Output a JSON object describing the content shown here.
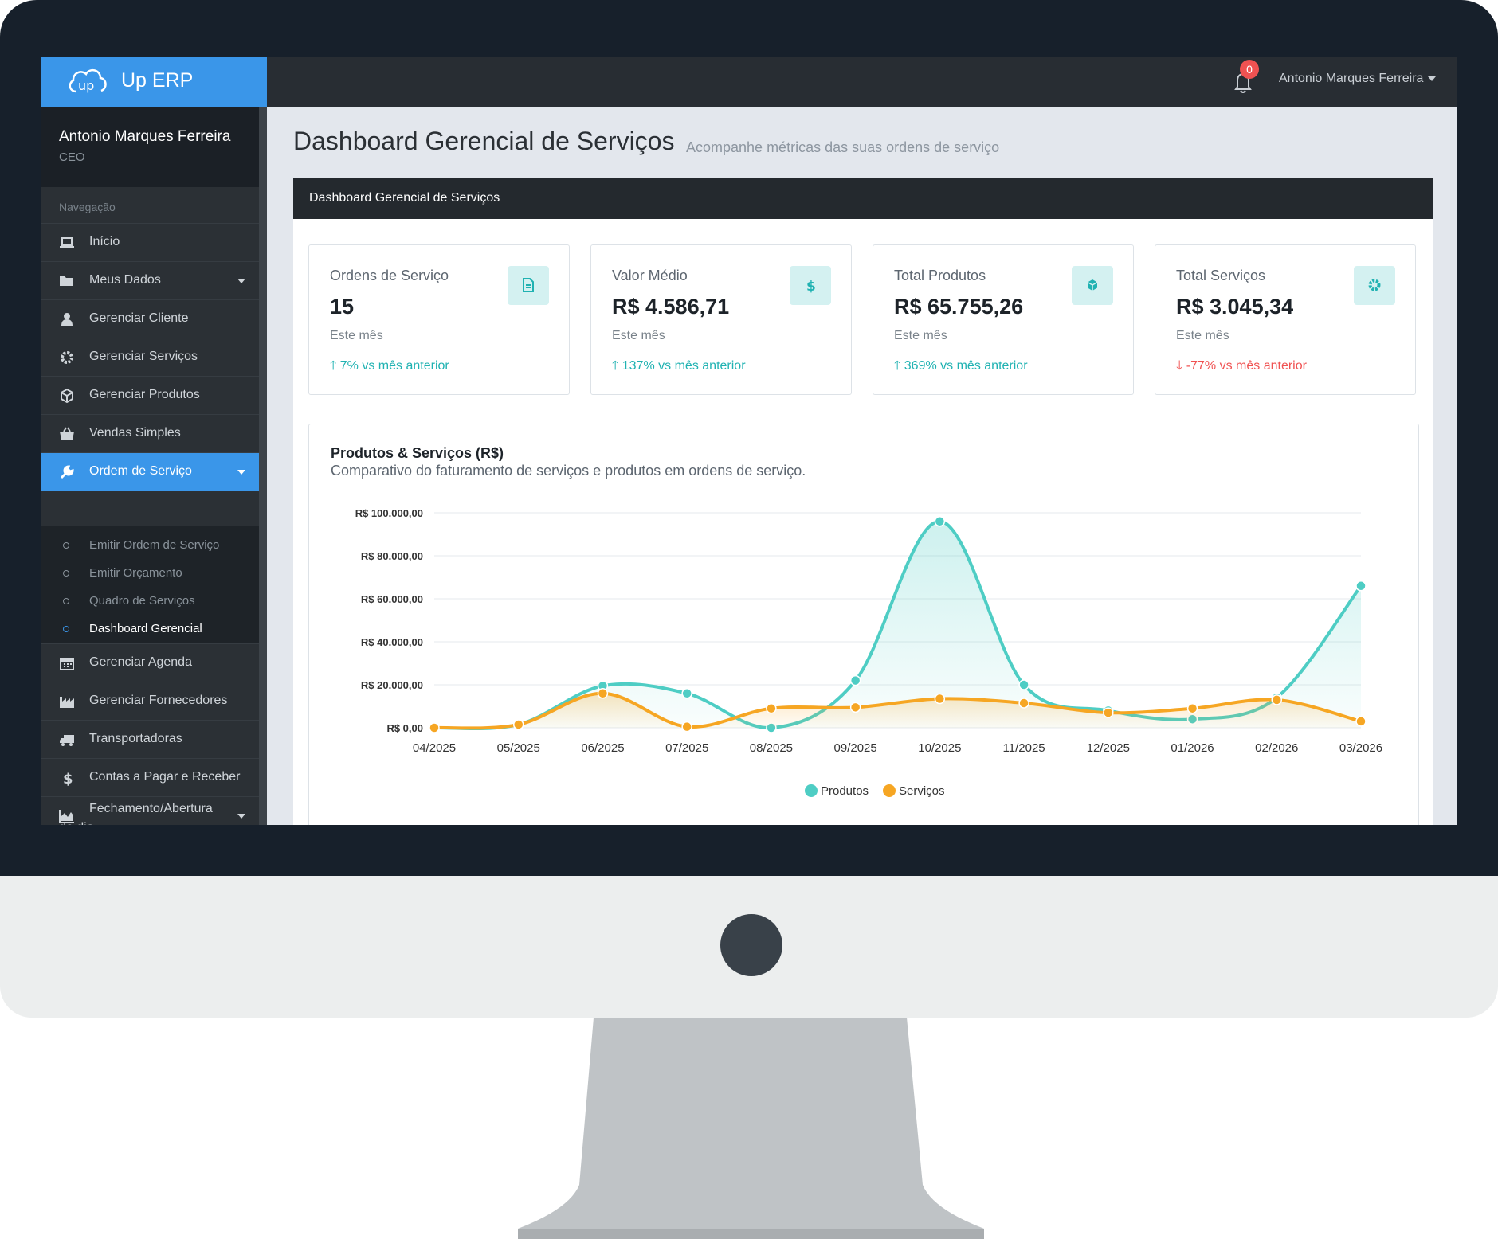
{
  "app": {
    "name": "Up ERP",
    "notification_count": "0",
    "current_user": "Antonio Marques Ferreira"
  },
  "sidebar": {
    "user_name": "Antonio Marques Ferreira",
    "user_role": "CEO",
    "heading": "Navegação",
    "items": [
      {
        "label": "Início",
        "icon": "laptop-icon"
      },
      {
        "label": "Meus Dados",
        "icon": "folder-icon"
      },
      {
        "label": "Gerenciar Cliente",
        "icon": "user-icon"
      },
      {
        "label": "Gerenciar Serviços",
        "icon": "gear-icon"
      },
      {
        "label": "Gerenciar Produtos",
        "icon": "cube-icon"
      },
      {
        "label": "Vendas Simples",
        "icon": "basket-icon"
      },
      {
        "label": "Ordem de Serviço",
        "icon": "wrench-icon"
      },
      {
        "label": "Gerenciar Agenda",
        "icon": "calendar-icon"
      },
      {
        "label": "Gerenciar Fornecedores",
        "icon": "factory-icon"
      },
      {
        "label": "Transportadoras",
        "icon": "truck-icon"
      },
      {
        "label": "Contas a Pagar e Receber",
        "icon": "dollar-icon"
      },
      {
        "label": "Fechamento/Abertura do dia",
        "icon": "area-chart-icon"
      }
    ],
    "submenu": [
      {
        "label": "Emitir Ordem de Serviço"
      },
      {
        "label": "Emitir Orçamento"
      },
      {
        "label": "Quadro de Serviços"
      },
      {
        "label": "Dashboard Gerencial"
      }
    ]
  },
  "page": {
    "title": "Dashboard Gerencial de Serviços",
    "subtitle": "Acompanhe métricas das suas ordens de serviço",
    "panel_title": "Dashboard Gerencial de Serviços"
  },
  "stats": [
    {
      "title": "Ordens de Serviço",
      "value": "15",
      "period": "Este mês",
      "trend": "7% vs mês anterior",
      "direction": "up",
      "icon": "document-icon"
    },
    {
      "title": "Valor Médio",
      "value": "R$ 4.586,71",
      "period": "Este mês",
      "trend": "137% vs mês anterior",
      "direction": "up",
      "icon": "dollar-icon"
    },
    {
      "title": "Total Produtos",
      "value": "R$ 65.755,26",
      "period": "Este mês",
      "trend": "369% vs mês anterior",
      "direction": "up",
      "icon": "cube-icon"
    },
    {
      "title": "Total Serviços",
      "value": "R$ 3.045,34",
      "period": "Este mês",
      "trend": "-77% vs mês anterior",
      "direction": "down",
      "icon": "gear-icon"
    }
  ],
  "colors": {
    "accent": "#3a96e9",
    "produtos": "#4ecdc4",
    "servicos": "#f6a623",
    "up": "#20b2b2",
    "down": "#f05252"
  },
  "chart_data": {
    "type": "area",
    "title": "Produtos & Serviços (R$)",
    "subtitle": "Comparativo do faturamento de serviços e produtos em ordens de serviço.",
    "categories": [
      "04/2025",
      "05/2025",
      "06/2025",
      "07/2025",
      "08/2025",
      "09/2025",
      "10/2025",
      "11/2025",
      "12/2025",
      "01/2026",
      "02/2026",
      "03/2026"
    ],
    "y_ticks": [
      "R$ 0,00",
      "R$ 20.000,00",
      "R$ 40.000,00",
      "R$ 60.000,00",
      "R$ 80.000,00",
      "R$ 100.000,00"
    ],
    "ylim": [
      0,
      100000
    ],
    "grid": true,
    "legend_position": "bottom",
    "series": [
      {
        "name": "Produtos",
        "values": [
          0,
          1500,
          19500,
          16000,
          0,
          22000,
          96000,
          20000,
          8000,
          4000,
          14000,
          66000
        ]
      },
      {
        "name": "Serviços",
        "values": [
          0,
          1500,
          16000,
          500,
          9000,
          9500,
          13500,
          11500,
          7000,
          9000,
          13000,
          3000
        ]
      }
    ]
  }
}
